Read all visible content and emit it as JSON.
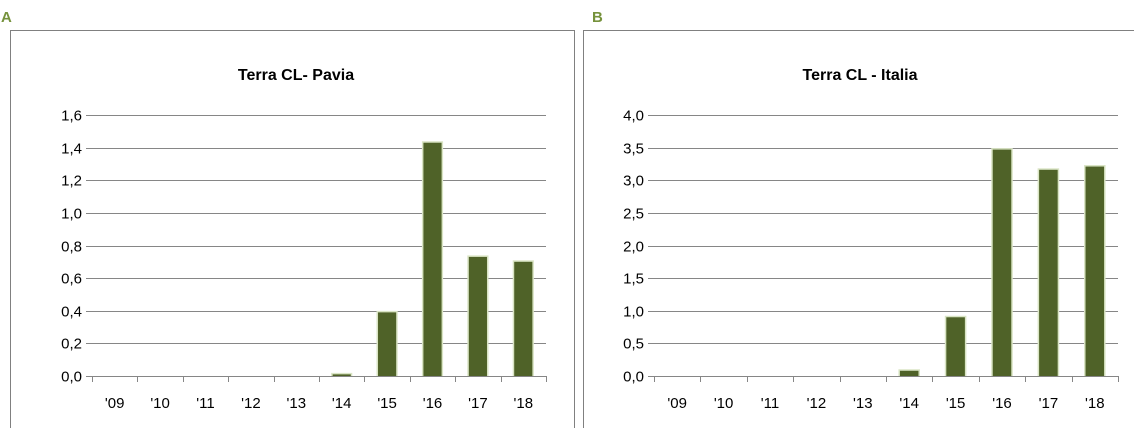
{
  "colors": {
    "bar": "#4f6228",
    "bar_edge": "#d9e4c4",
    "grid": "#868686",
    "frame": "#808080",
    "panel_letter": "#76923c"
  },
  "chart_data": [
    {
      "panel": "A",
      "type": "bar",
      "title": "Terra CL- Pavia",
      "xlabel": "",
      "ylabel": "",
      "categories": [
        "'09",
        "'10",
        "'11",
        "'12",
        "'13",
        "'14",
        "'15",
        "'16",
        "'17",
        "'18"
      ],
      "values": [
        0,
        0,
        0,
        0,
        0,
        0.01,
        0.39,
        1.43,
        0.73,
        0.7
      ],
      "ylim": [
        0,
        1.6
      ],
      "yticks": [
        "0,0",
        "0,2",
        "0,4",
        "0,6",
        "0,8",
        "1,0",
        "1,2",
        "1,4",
        "1,6"
      ],
      "grid": true,
      "legend": "none"
    },
    {
      "panel": "B",
      "type": "bar",
      "title": "Terra CL - Italia",
      "xlabel": "",
      "ylabel": "",
      "categories": [
        "'09",
        "'10",
        "'11",
        "'12",
        "'13",
        "'14",
        "'15",
        "'16",
        "'17",
        "'18"
      ],
      "values": [
        0,
        0,
        0,
        0,
        0,
        0.08,
        0.9,
        3.47,
        3.16,
        3.21
      ],
      "ylim": [
        0,
        4.0
      ],
      "yticks": [
        "0,0",
        "0,5",
        "1,0",
        "1,5",
        "2,0",
        "2,5",
        "3,0",
        "3,5",
        "4,0"
      ],
      "grid": true,
      "legend": "none"
    }
  ]
}
